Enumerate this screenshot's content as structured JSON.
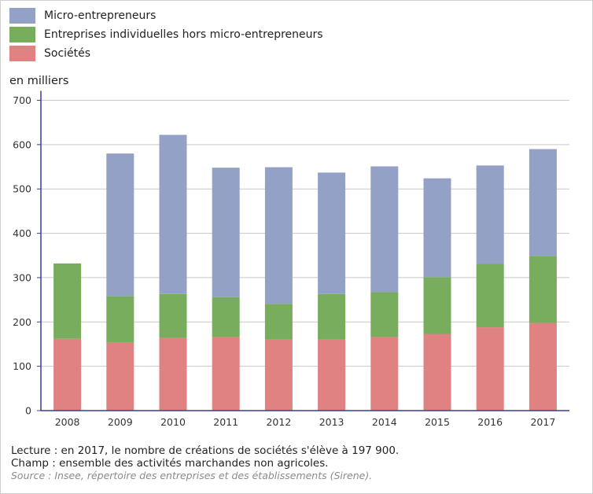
{
  "chart_data": {
    "type": "bar",
    "stacked": true,
    "ylabel": "en milliers",
    "ylim": [
      0,
      700
    ],
    "yticks": [
      0,
      100,
      200,
      300,
      400,
      500,
      600,
      700
    ],
    "grid": true,
    "legend_position": "top-left",
    "categories": [
      "2008",
      "2009",
      "2010",
      "2011",
      "2012",
      "2013",
      "2014",
      "2015",
      "2016",
      "2017"
    ],
    "series": [
      {
        "name": "Sociétés",
        "color": "#e08282",
        "values": [
          162,
          153,
          164,
          166,
          160,
          160,
          166,
          173,
          188,
          197.9
        ]
      },
      {
        "name": "Entreprises individuelles hors micro-entrepreneurs",
        "color": "#77ad5c",
        "values": [
          170,
          105,
          99,
          90,
          81,
          103,
          101,
          128,
          143,
          151
        ]
      },
      {
        "name": "Micro-entrepreneurs",
        "color": "#93a1c6",
        "values": [
          0,
          322,
          359,
          292,
          308,
          274,
          284,
          223,
          222,
          241
        ]
      }
    ]
  },
  "legend": [
    {
      "label": "Micro-entrepreneurs",
      "color": "#93a1c6"
    },
    {
      "label": "Entreprises individuelles hors micro-entrepreneurs",
      "color": "#77ad5c"
    },
    {
      "label": "Sociétés",
      "color": "#e08282"
    }
  ],
  "notes": {
    "lecture": "Lecture : en 2017, le nombre de créations de sociétés s'élève à 197 900.",
    "champ": "Champ : ensemble des activités marchandes non agricoles.",
    "source": "Source : Insee, répertoire des entreprises et des établissements (Sirene)."
  }
}
